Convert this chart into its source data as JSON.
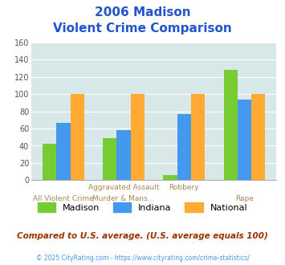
{
  "title_line1": "2006 Madison",
  "title_line2": "Violent Crime Comparison",
  "series": {
    "Madison": [
      42,
      49,
      6,
      128
    ],
    "Indiana": [
      67,
      58,
      77,
      94
    ],
    "National": [
      100,
      100,
      100,
      100
    ]
  },
  "colors": {
    "Madison": "#77cc33",
    "Indiana": "#4499ee",
    "National": "#ffaa33"
  },
  "ylim": [
    0,
    160
  ],
  "yticks": [
    0,
    20,
    40,
    60,
    80,
    100,
    120,
    140,
    160
  ],
  "bg_color": "#d8e8e8",
  "title_color": "#2255cc",
  "footer_text": "Compared to U.S. average. (U.S. average equals 100)",
  "footer_color": "#993300",
  "copyright_text": "© 2025 CityRating.com - https://www.cityrating.com/crime-statistics/",
  "copyright_color": "#4499ee",
  "xlabel_color": "#aa8855",
  "top_row_labels": [
    "",
    "Aggravated Assault",
    "Robbery",
    ""
  ],
  "bottom_row_labels": [
    "All Violent Crime",
    "Murder & Mans...",
    "",
    "Rape"
  ]
}
